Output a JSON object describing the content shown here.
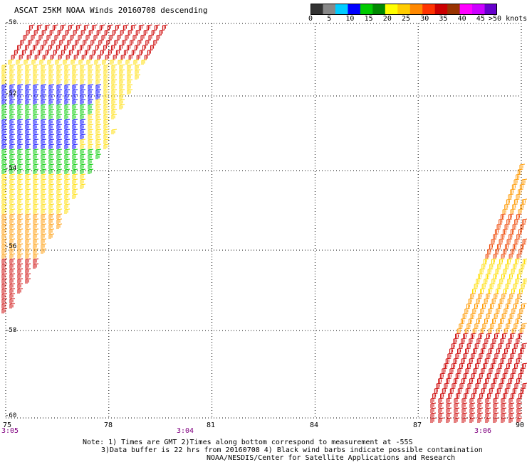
{
  "title": "ASCAT 25KM NOAA Winds 20160708 descending",
  "colorbar": {
    "colors": [
      "#333333",
      "#888888",
      "#00ccff",
      "#0000ff",
      "#00cc00",
      "#008800",
      "#ffff00",
      "#ffcc00",
      "#ff8800",
      "#ff3300",
      "#cc0000",
      "#993300",
      "#ff00ff",
      "#cc00ff",
      "#6600cc"
    ],
    "labels": [
      "0",
      "5",
      "10",
      "15",
      "20",
      "25",
      "30",
      "35",
      "40",
      "45"
    ],
    "units": ">50 knots"
  },
  "axes": {
    "lon_min": 75,
    "lon_max": 90,
    "lat_top": -50,
    "lat_bottom": -60,
    "lon_ticks": [
      "75",
      "78",
      "81",
      "84",
      "87",
      "90"
    ],
    "lat_ticks": [
      "-50",
      "-52",
      "-54",
      "-56",
      "-58",
      "-60"
    ],
    "grid": "dotted"
  },
  "pass_times": [
    "3:05",
    "3:04",
    "3:06"
  ],
  "notes": [
    "Note: 1) Times are GMT 2)Times along bottom correspond to measurement at -55S",
    "3)Data buffer is 22 hrs from 20160708 4) Black wind barbs indicate possible contamination",
    "NOAA/NESDIS/Center for Satellite Applications and Research"
  ]
}
